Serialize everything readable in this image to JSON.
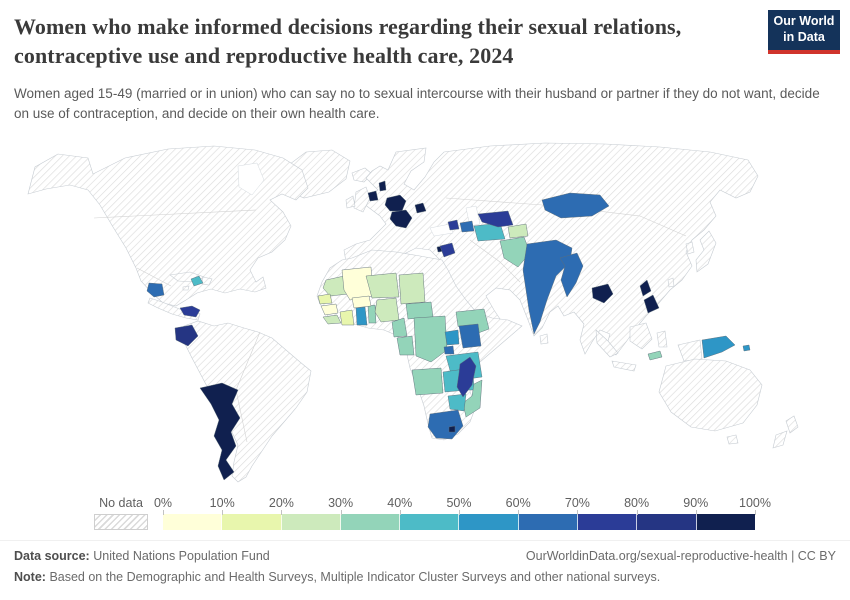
{
  "header": {
    "title": "Women who make informed decisions regarding their sexual relations, contraceptive use and reproductive health care, 2024",
    "subtitle": "Women aged 15-49 (married or in union) who can say no to sexual intercourse with their husband or partner if they do not want, decide on use of contraception, and decide on their own health care.",
    "logo": {
      "line1": "Our World",
      "line2": "in Data",
      "background": "#14335a",
      "accent_bar": "#d0342c",
      "text_color": "#ffffff"
    }
  },
  "legend": {
    "no_data_label": "No data",
    "tick_labels": [
      "0%",
      "10%",
      "20%",
      "30%",
      "40%",
      "50%",
      "60%",
      "70%",
      "80%",
      "90%",
      "100%"
    ],
    "bin_colors": [
      "#ffffd9",
      "#e8f6ad",
      "#cdeabc",
      "#93d4b9",
      "#4dbbc7",
      "#2e96c6",
      "#2d6cb2",
      "#2b3c97",
      "#253583",
      "#10204f"
    ],
    "no_data_pattern": {
      "style": "diagonal-hatch",
      "foreground": "#dadada",
      "background": "#ffffff"
    }
  },
  "chart_data": {
    "type": "choropleth",
    "title": "Women who make informed decisions regarding their sexual relations, contraceptive use and reproductive health care",
    "year": 2024,
    "unit": "% of women aged 15-49 (married or in union)",
    "projection": "world map",
    "bins": [
      {
        "range": "0-10%",
        "color": "#ffffd9"
      },
      {
        "range": "10-20%",
        "color": "#e8f6ad"
      },
      {
        "range": "20-30%",
        "color": "#cdeabc"
      },
      {
        "range": "30-40%",
        "color": "#93d4b9"
      },
      {
        "range": "40-50%",
        "color": "#4dbbc7"
      },
      {
        "range": "50-60%",
        "color": "#2e96c6"
      },
      {
        "range": "60-70%",
        "color": "#2d6cb2"
      },
      {
        "range": "70-80%",
        "color": "#2b3c97"
      },
      {
        "range": "80-90%",
        "color": "#253583"
      },
      {
        "range": "90-100%",
        "color": "#10204f"
      }
    ],
    "countries": [
      {
        "name": "Mali",
        "value_range": "0-10%",
        "bin_index": 0
      },
      {
        "name": "Guinea",
        "value_range": "0-10%",
        "bin_index": 0
      },
      {
        "name": "Burkina Faso",
        "value_range": "0-10%",
        "bin_index": 0
      },
      {
        "name": "Senegal",
        "value_range": "10-20%",
        "bin_index": 1
      },
      {
        "name": "Côte d'Ivoire",
        "value_range": "10-20%",
        "bin_index": 1
      },
      {
        "name": "Mauritania",
        "value_range": "20-30%",
        "bin_index": 2
      },
      {
        "name": "Sierra Leone",
        "value_range": "20-30%",
        "bin_index": 2
      },
      {
        "name": "Liberia",
        "value_range": "20-30%",
        "bin_index": 2
      },
      {
        "name": "Niger",
        "value_range": "20-30%",
        "bin_index": 2
      },
      {
        "name": "Nigeria",
        "value_range": "20-30%",
        "bin_index": 2
      },
      {
        "name": "Chad",
        "value_range": "20-30%",
        "bin_index": 2
      },
      {
        "name": "Tajikistan",
        "value_range": "20-30%",
        "bin_index": 2
      },
      {
        "name": "Kyrgyzstan",
        "value_range": "20-30%",
        "bin_index": 2
      },
      {
        "name": "Togo",
        "value_range": "30-40%",
        "bin_index": 3
      },
      {
        "name": "Benin",
        "value_range": "30-40%",
        "bin_index": 3
      },
      {
        "name": "Cameroon",
        "value_range": "30-40%",
        "bin_index": 3
      },
      {
        "name": "Central African Republic",
        "value_range": "30-40%",
        "bin_index": 3
      },
      {
        "name": "Gabon",
        "value_range": "30-40%",
        "bin_index": 3
      },
      {
        "name": "Congo",
        "value_range": "30-40%",
        "bin_index": 3
      },
      {
        "name": "Democratic Republic of Congo",
        "value_range": "30-40%",
        "bin_index": 3
      },
      {
        "name": "Ethiopia",
        "value_range": "30-40%",
        "bin_index": 3
      },
      {
        "name": "Angola",
        "value_range": "30-40%",
        "bin_index": 3
      },
      {
        "name": "Mozambique",
        "value_range": "30-40%",
        "bin_index": 3
      },
      {
        "name": "Pakistan",
        "value_range": "30-40%",
        "bin_index": 3
      },
      {
        "name": "Timor",
        "value_range": "30-40%",
        "bin_index": 3
      },
      {
        "name": "Haiti",
        "value_range": "40-50%",
        "bin_index": 4
      },
      {
        "name": "Turkmenistan",
        "value_range": "40-50%",
        "bin_index": 4
      },
      {
        "name": "Tanzania",
        "value_range": "40-50%",
        "bin_index": 4
      },
      {
        "name": "Zambia",
        "value_range": "40-50%",
        "bin_index": 4
      },
      {
        "name": "Malawi",
        "value_range": "40-50%",
        "bin_index": 4
      },
      {
        "name": "Zimbabwe",
        "value_range": "40-50%",
        "bin_index": 4
      },
      {
        "name": "Ghana",
        "value_range": "50-60%",
        "bin_index": 5
      },
      {
        "name": "Uganda",
        "value_range": "50-60%",
        "bin_index": 5
      },
      {
        "name": "Papua New Guinea",
        "value_range": "50-60%",
        "bin_index": 5
      },
      {
        "name": "Solomon Islands",
        "value_range": "50-60%",
        "bin_index": 5
      },
      {
        "name": "Guatemala",
        "value_range": "60-70%",
        "bin_index": 6
      },
      {
        "name": "Kenya",
        "value_range": "60-70%",
        "bin_index": 6
      },
      {
        "name": "Rwanda",
        "value_range": "60-70%",
        "bin_index": 6
      },
      {
        "name": "Burundi",
        "value_range": "60-70%",
        "bin_index": 6
      },
      {
        "name": "South Africa",
        "value_range": "60-70%",
        "bin_index": 6
      },
      {
        "name": "India",
        "value_range": "60-70%",
        "bin_index": 6
      },
      {
        "name": "Nepal",
        "value_range": "60-70%",
        "bin_index": 6
      },
      {
        "name": "Bangladesh",
        "value_range": "60-70%",
        "bin_index": 6
      },
      {
        "name": "Myanmar",
        "value_range": "60-70%",
        "bin_index": 6
      },
      {
        "name": "Mongolia",
        "value_range": "60-70%",
        "bin_index": 6
      },
      {
        "name": "Azerbaijan",
        "value_range": "60-70%",
        "bin_index": 6
      },
      {
        "name": "Panama",
        "value_range": "70-80%",
        "bin_index": 7
      },
      {
        "name": "Jordan",
        "value_range": "70-80%",
        "bin_index": 7
      },
      {
        "name": "Armenia",
        "value_range": "70-80%",
        "bin_index": 7
      },
      {
        "name": "Uzbekistan",
        "value_range": "70-80%",
        "bin_index": 7
      },
      {
        "name": "Madagascar",
        "value_range": "70-80%",
        "bin_index": 7
      },
      {
        "name": "Ecuador",
        "value_range": "80-90%",
        "bin_index": 8
      },
      {
        "name": "Argentina",
        "value_range": "90-100%",
        "bin_index": 9
      },
      {
        "name": "Netherlands",
        "value_range": "90-100%",
        "bin_index": 9
      },
      {
        "name": "Denmark",
        "value_range": "90-100%",
        "bin_index": 9
      },
      {
        "name": "Germany",
        "value_range": "90-100%",
        "bin_index": 9
      },
      {
        "name": "Czechia",
        "value_range": "90-100%",
        "bin_index": 9
      },
      {
        "name": "Austria",
        "value_range": "90-100%",
        "bin_index": 9
      },
      {
        "name": "Hungary",
        "value_range": "90-100%",
        "bin_index": 9
      },
      {
        "name": "Croatia",
        "value_range": "90-100%",
        "bin_index": 9
      },
      {
        "name": "Serbia",
        "value_range": "90-100%",
        "bin_index": 9
      },
      {
        "name": "Albania",
        "value_range": "90-100%",
        "bin_index": 9
      },
      {
        "name": "Moldova",
        "value_range": "90-100%",
        "bin_index": 9
      },
      {
        "name": "Cyprus",
        "value_range": "90-100%",
        "bin_index": 9
      },
      {
        "name": "Cambodia",
        "value_range": "90-100%",
        "bin_index": 9
      },
      {
        "name": "Philippines",
        "value_range": "90-100%",
        "bin_index": 9
      },
      {
        "name": "Lesotho",
        "value_range": "90-100%",
        "bin_index": 9
      }
    ],
    "no_data_countries_visible": [
      "United States",
      "Canada",
      "Mexico",
      "Greenland",
      "Brazil",
      "Colombia",
      "Peru",
      "Bolivia",
      "Chile",
      "Venezuela",
      "Cuba",
      "Dominican Republic",
      "Honduras",
      "Nicaragua",
      "United Kingdom",
      "France",
      "Spain",
      "Italy",
      "Poland",
      "Ukraine",
      "Norway",
      "Sweden",
      "Finland",
      "Russia",
      "Turkey",
      "Iran",
      "Saudi Arabia",
      "Kazakhstan",
      "Afghanistan",
      "China",
      "Thailand",
      "Vietnam",
      "Laos",
      "Indonesia",
      "Japan",
      "South Korea",
      "Australia",
      "New Zealand",
      "Algeria",
      "Libya",
      "Egypt",
      "Sudan",
      "Somalia",
      "Morocco",
      "Namibia",
      "Botswana"
    ],
    "legend_position": "bottom"
  },
  "footer": {
    "datasource_label": "Data source:",
    "datasource_value": "United Nations Population Fund",
    "credit": "OurWorldinData.org/sexual-reproductive-health | CC BY",
    "note_label": "Note:",
    "note_text": "Based on the Demographic and Health Surveys, Multiple Indicator Cluster Surveys and other national surveys."
  }
}
